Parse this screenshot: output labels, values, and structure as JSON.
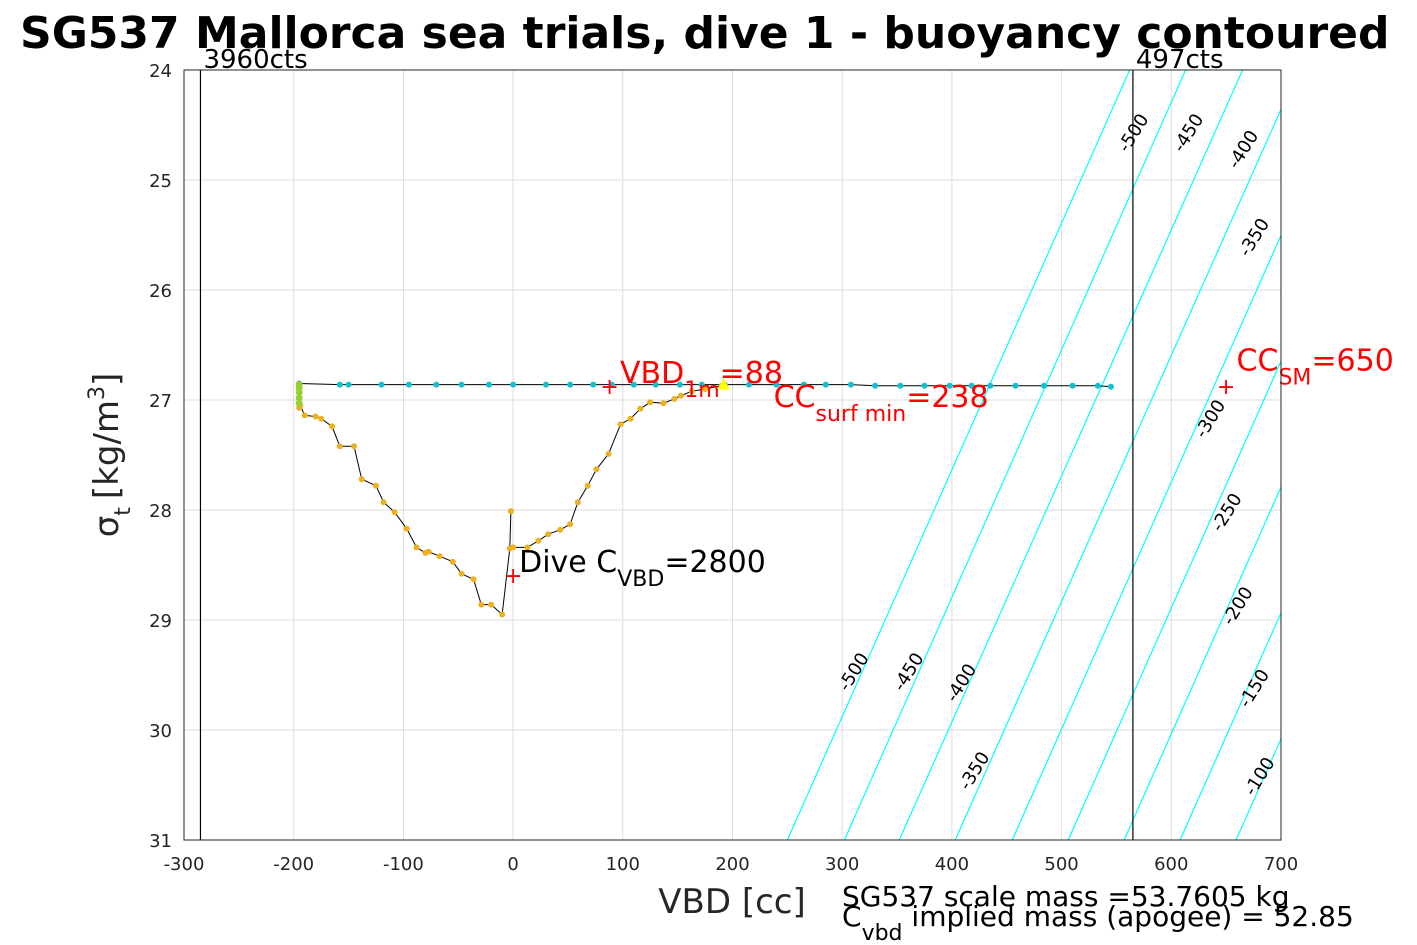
{
  "chart_data": {
    "type": "scatter",
    "title": "SG537 Mallorca sea trials, dive 1 - buoyancy contoured",
    "xlabel": "VBD [cc]",
    "ylabel": "σ",
    "ylabel_sub": "t",
    "ylabel_unit": "[kg/m",
    "ylabel_unit_sup": "3",
    "ylabel_close": "]",
    "xlim": [
      -300,
      700
    ],
    "ylim": [
      24,
      31
    ],
    "y_reversed": true,
    "grid": true,
    "xticks": [
      -300,
      -200,
      -100,
      0,
      100,
      200,
      300,
      400,
      500,
      600,
      700
    ],
    "yticks": [
      24,
      25,
      26,
      27,
      28,
      29,
      30,
      31
    ],
    "limit_lines": [
      {
        "x": -285,
        "label": "3960cts"
      },
      {
        "x": 565,
        "label": "497cts"
      }
    ],
    "dive_series": {
      "x": [
        -195,
        -194,
        -190,
        -180,
        -175,
        -165,
        -158,
        -145,
        -138,
        -125,
        -118,
        -108,
        -97,
        -88,
        -80,
        -77,
        -67,
        -55,
        -47,
        -36,
        -29,
        -20,
        -10,
        -3,
        0,
        13,
        23,
        32,
        43,
        52,
        59,
        68,
        76,
        87,
        98,
        107,
        116,
        125,
        137,
        147,
        153,
        163,
        175,
        190
      ],
      "y": [
        27.07,
        27.05,
        27.14,
        27.15,
        27.17,
        27.24,
        27.42,
        27.42,
        27.72,
        27.78,
        27.93,
        28.02,
        28.17,
        28.34,
        28.39,
        28.38,
        28.42,
        28.47,
        28.58,
        28.63,
        28.86,
        28.86,
        28.95,
        28.35,
        28.34,
        28.34,
        28.28,
        28.22,
        28.18,
        28.13,
        27.93,
        27.78,
        27.63,
        27.49,
        27.22,
        27.17,
        27.08,
        27.02,
        27.03,
        26.99,
        26.96,
        26.92,
        26.9,
        26.87
      ],
      "extra_point": {
        "x": -2,
        "y": 28.01
      }
    },
    "climb_series": {
      "x": [
        -195,
        -158,
        -150,
        -120,
        -95,
        -70,
        -47,
        -22,
        0,
        30,
        52,
        73,
        90,
        110,
        130,
        152,
        172,
        193,
        215,
        240,
        265,
        285,
        308,
        330,
        353,
        375,
        398,
        418,
        435,
        458,
        484,
        510,
        533,
        545
      ],
      "y": [
        26.85,
        26.86,
        26.86,
        26.86,
        26.86,
        26.86,
        26.86,
        26.86,
        26.86,
        26.86,
        26.86,
        26.86,
        26.86,
        26.86,
        26.86,
        26.86,
        26.86,
        26.86,
        26.86,
        26.86,
        26.86,
        26.86,
        26.86,
        26.87,
        26.87,
        26.87,
        26.87,
        26.87,
        26.87,
        26.87,
        26.87,
        26.87,
        26.87,
        26.88
      ]
    },
    "surface_points": {
      "x": [
        -195,
        -195,
        -195,
        -195,
        -195
      ],
      "y": [
        26.86,
        26.89,
        26.93,
        26.98,
        27.03
      ]
    },
    "apogee_marker": {
      "x": 192,
      "y": 26.86
    },
    "red_markers": [
      {
        "x": 88,
        "y": 26.88
      },
      {
        "x": 0,
        "y": 28.6
      },
      {
        "x": 650,
        "y": 26.88
      }
    ],
    "contours": [
      {
        "level": -500,
        "x_bottom": 250,
        "x_top": 562
      },
      {
        "level": -450,
        "x_bottom": 302,
        "x_top": 613
      },
      {
        "level": -400,
        "x_bottom": 352,
        "x_top": 665
      },
      {
        "level": -350,
        "x_bottom": 403,
        "x_top": 716
      },
      {
        "level": -300,
        "x_bottom": 455,
        "x_top": 767
      },
      {
        "level": -250,
        "x_bottom": 506,
        "x_top": 818
      },
      {
        "level": -200,
        "x_bottom": 557,
        "x_top": 869
      },
      {
        "level": -150,
        "x_bottom": 608,
        "x_top": 920
      },
      {
        "level": -100,
        "x_bottom": 659,
        "x_top": 971
      }
    ],
    "contour_labels": [
      {
        "text": "-500",
        "x": 570,
        "y": 24.6
      },
      {
        "text": "-450",
        "x": 620,
        "y": 24.6
      },
      {
        "text": "-400",
        "x": 670,
        "y": 24.75
      },
      {
        "text": "-350",
        "x": 680,
        "y": 25.55
      },
      {
        "text": "-300",
        "x": 640,
        "y": 27.2
      },
      {
        "text": "-250",
        "x": 655,
        "y": 28.05
      },
      {
        "text": "-200",
        "x": 665,
        "y": 28.9
      },
      {
        "text": "-150",
        "x": 680,
        "y": 29.65
      },
      {
        "text": "-100",
        "x": 685,
        "y": 30.45
      },
      {
        "text": "-500",
        "x": 315,
        "y": 29.5
      },
      {
        "text": "-450",
        "x": 365,
        "y": 29.5
      },
      {
        "text": "-400",
        "x": 413,
        "y": 29.6
      },
      {
        "text": "-350",
        "x": 425,
        "y": 30.4
      }
    ],
    "annotations": [
      {
        "main": "VBD",
        "sub": "1m",
        "rest": "=88",
        "x": 92,
        "y": 26.88,
        "color": "red"
      },
      {
        "main": "CC",
        "sub": "surf min",
        "rest": "=238",
        "x": 232,
        "y": 27.1,
        "color": "red"
      },
      {
        "main": "CC",
        "sub": "SM",
        "rest": "=650",
        "x": 654,
        "y": 26.77,
        "color": "red"
      },
      {
        "main": "Dive C",
        "sub": "VBD",
        "rest": "=2800",
        "x": 0,
        "y": 28.6,
        "color": "black"
      }
    ],
    "footer": {
      "line1": "SG537 scale mass =53.7605 kg",
      "line2_main": "C",
      "line2_sub": "vbd",
      "line2_rest": " implied mass (apogee) = 52.85"
    },
    "colors": {
      "contour": "#00ffff",
      "dive_marker": "#edb120",
      "climb_marker": "#17becf",
      "surface_marker": "#9acd32",
      "apogee": "#ffff00",
      "annotation": "#ff0000",
      "line": "#000000"
    }
  }
}
